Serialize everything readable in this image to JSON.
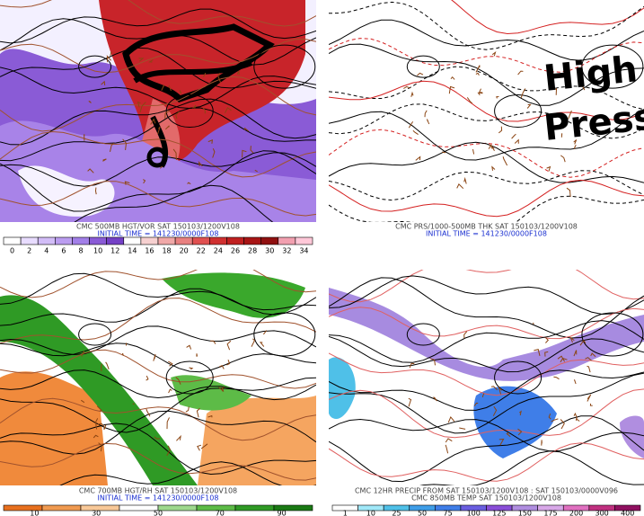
{
  "panels": [
    {
      "captions": [
        "CMC 500MB HGT/VOR SAT 150103/1200V108"
      ],
      "initial_time": "INITIAL TIME = 141230/0000F108",
      "scale_labels": [
        0,
        2,
        4,
        6,
        8,
        10,
        12,
        14,
        16,
        18,
        20,
        22,
        24,
        26,
        28,
        30,
        32,
        34
      ]
    },
    {
      "captions": [
        "CMC PRS/1000-500MB THK SAT 150103/1200V108"
      ],
      "initial_time": "INITIAL TIME = 141230/0000F108",
      "annotation": [
        "High",
        "Press"
      ]
    },
    {
      "captions": [
        "CMC 700MB HGT/RH SAT 150103/1200V108"
      ],
      "initial_time": "INITIAL TIME = 141230/0000F108",
      "scale_labels": [
        10,
        30,
        50,
        70,
        90
      ]
    },
    {
      "captions": [
        "CMC 12HR PRECIP FROM SAT 150103/1200V108 : SAT 150103/0000V096",
        "CMC 850MB TEMP SAT 150103/1200V108"
      ],
      "scale_labels": [
        1,
        10,
        25,
        50,
        75,
        100,
        125,
        150,
        175,
        200,
        300,
        400
      ]
    }
  ]
}
